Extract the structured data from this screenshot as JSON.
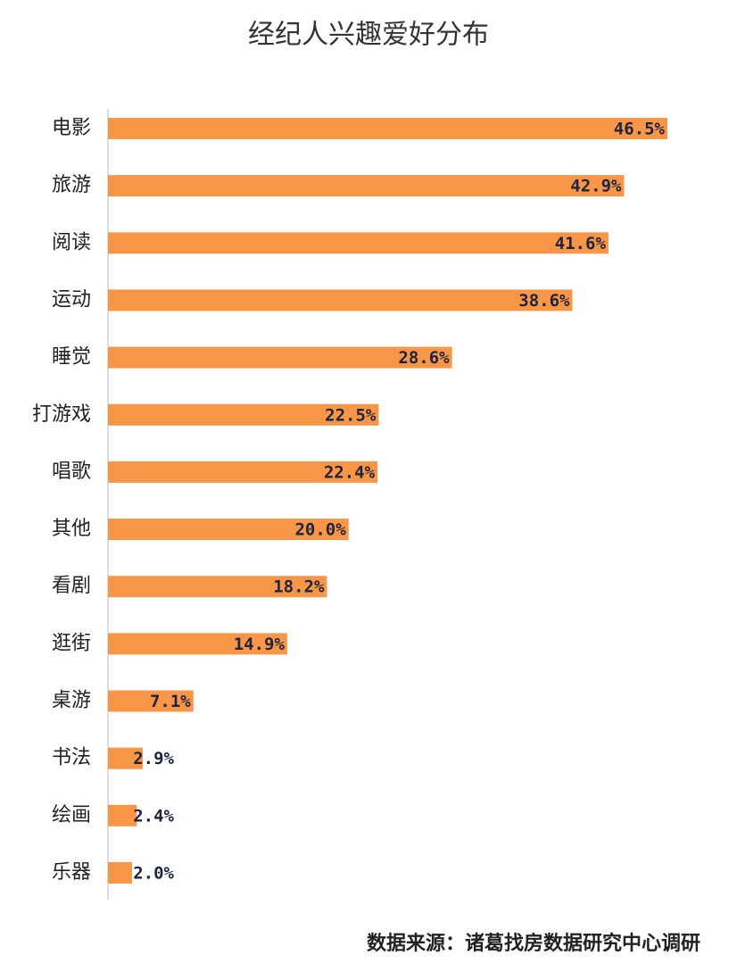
{
  "chart_data": {
    "type": "hbar",
    "title": "经纪人兴趣爱好分布",
    "categories": [
      "电影",
      "旅游",
      "阅读",
      "运动",
      "睡觉",
      "打游戏",
      "唱歌",
      "其他",
      "看剧",
      "逛街",
      "桌游",
      "书法",
      "绘画",
      "乐器"
    ],
    "values": [
      46.5,
      42.9,
      41.6,
      38.6,
      28.6,
      22.5,
      22.4,
      20.0,
      18.2,
      14.9,
      7.1,
      2.9,
      2.4,
      2.0
    ],
    "value_labels": [
      "46.5%",
      "42.9%",
      "41.6%",
      "38.6%",
      "28.6%",
      "22.5%",
      "22.4%",
      "20.0%",
      "18.2%",
      "14.9%",
      "7.1%",
      "2.9%",
      "2.4%",
      "2.0%"
    ],
    "color": "#f79646",
    "source": "数据来源：诸葛找房数据研究中心调研"
  }
}
